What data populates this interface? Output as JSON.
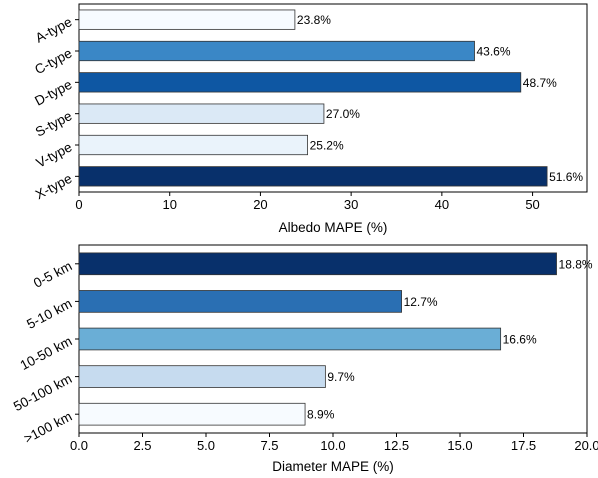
{
  "chart_data": [
    {
      "type": "bar",
      "orientation": "horizontal",
      "categories": [
        "A-type",
        "C-type",
        "D-type",
        "S-type",
        "V-type",
        "X-type"
      ],
      "values": [
        23.8,
        43.6,
        48.7,
        27.0,
        25.2,
        51.6
      ],
      "data_labels": [
        "23.8%",
        "43.6%",
        "48.7%",
        "27.0%",
        "25.2%",
        "51.6%"
      ],
      "colors": [
        "#f7fbff",
        "#3a87c6",
        "#0e57a3",
        "#dbe9f6",
        "#eaf3fb",
        "#08306b"
      ],
      "xlabel": "Albedo MAPE (%)",
      "ylabel": "",
      "xlim": [
        0,
        56
      ],
      "xticks": [
        0,
        10,
        20,
        30,
        40,
        50
      ],
      "xtick_labels": [
        "0",
        "10",
        "20",
        "30",
        "40",
        "50"
      ],
      "grid": false
    },
    {
      "type": "bar",
      "orientation": "horizontal",
      "categories": [
        "0-5 km",
        "5-10 km",
        "10-50 km",
        "50-100 km",
        ">100 km"
      ],
      "values": [
        18.8,
        12.7,
        16.6,
        9.7,
        8.9
      ],
      "data_labels": [
        "18.8%",
        "12.7%",
        "16.6%",
        "9.7%",
        "8.9%"
      ],
      "colors": [
        "#08306b",
        "#2a6fb3",
        "#6aaed6",
        "#c6dbef",
        "#f7fbff"
      ],
      "xlabel": "Diameter MAPE (%)",
      "ylabel": "",
      "xlim": [
        0,
        20
      ],
      "xticks": [
        0,
        2.5,
        5,
        7.5,
        10,
        12.5,
        15,
        17.5,
        20
      ],
      "xtick_labels": [
        "0.0",
        "2.5",
        "5.0",
        "7.5",
        "10.0",
        "12.5",
        "15.0",
        "17.5",
        "20.0"
      ],
      "grid": false
    }
  ]
}
